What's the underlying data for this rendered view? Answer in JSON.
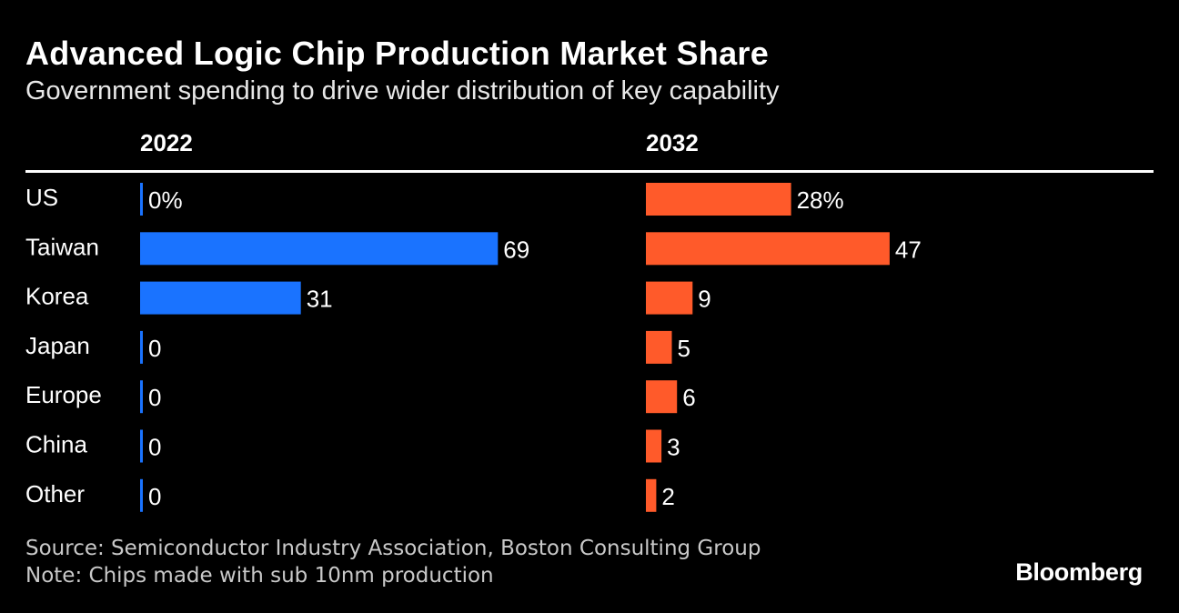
{
  "header": {
    "title": "Advanced Logic Chip Production Market Share",
    "subtitle": "Government spending to drive wider distribution of key capability"
  },
  "chart_data": {
    "type": "bar",
    "orientation": "horizontal",
    "unit": "%",
    "categories": [
      "US",
      "Taiwan",
      "Korea",
      "Japan",
      "Europe",
      "China",
      "Other"
    ],
    "series": [
      {
        "name": "2022",
        "color": "#1a73ff",
        "values": [
          0,
          69,
          31,
          0,
          0,
          0,
          0
        ],
        "labels": [
          "0%",
          "69",
          "31",
          "0",
          "0",
          "0",
          "0"
        ]
      },
      {
        "name": "2032",
        "color": "#ff5a2a",
        "values": [
          28,
          47,
          9,
          5,
          6,
          3,
          2
        ],
        "labels": [
          "28%",
          "47",
          "9",
          "5",
          "6",
          "3",
          "2"
        ]
      }
    ],
    "grid": false,
    "legend": "none"
  },
  "footer": {
    "source": "Source: Semiconductor Industry Association, Boston Consulting Group",
    "note": "Note: Chips made with sub 10nm production",
    "brand": "Bloomberg"
  }
}
